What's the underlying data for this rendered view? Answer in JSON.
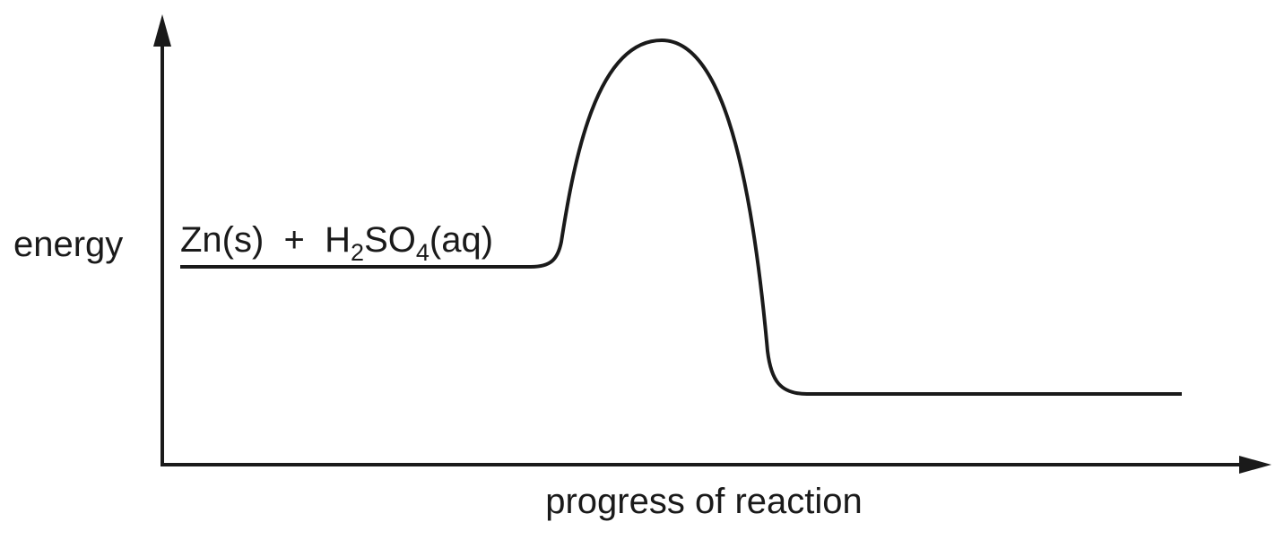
{
  "axes": {
    "y_label": "energy",
    "x_label": "progress of reaction"
  },
  "reactants": {
    "part1": "Zn(s)  +  H",
    "sub1": "2",
    "part2": "SO",
    "sub2": "4",
    "part3": "(aq)"
  },
  "colors": {
    "ink": "#1a1a1a"
  }
}
